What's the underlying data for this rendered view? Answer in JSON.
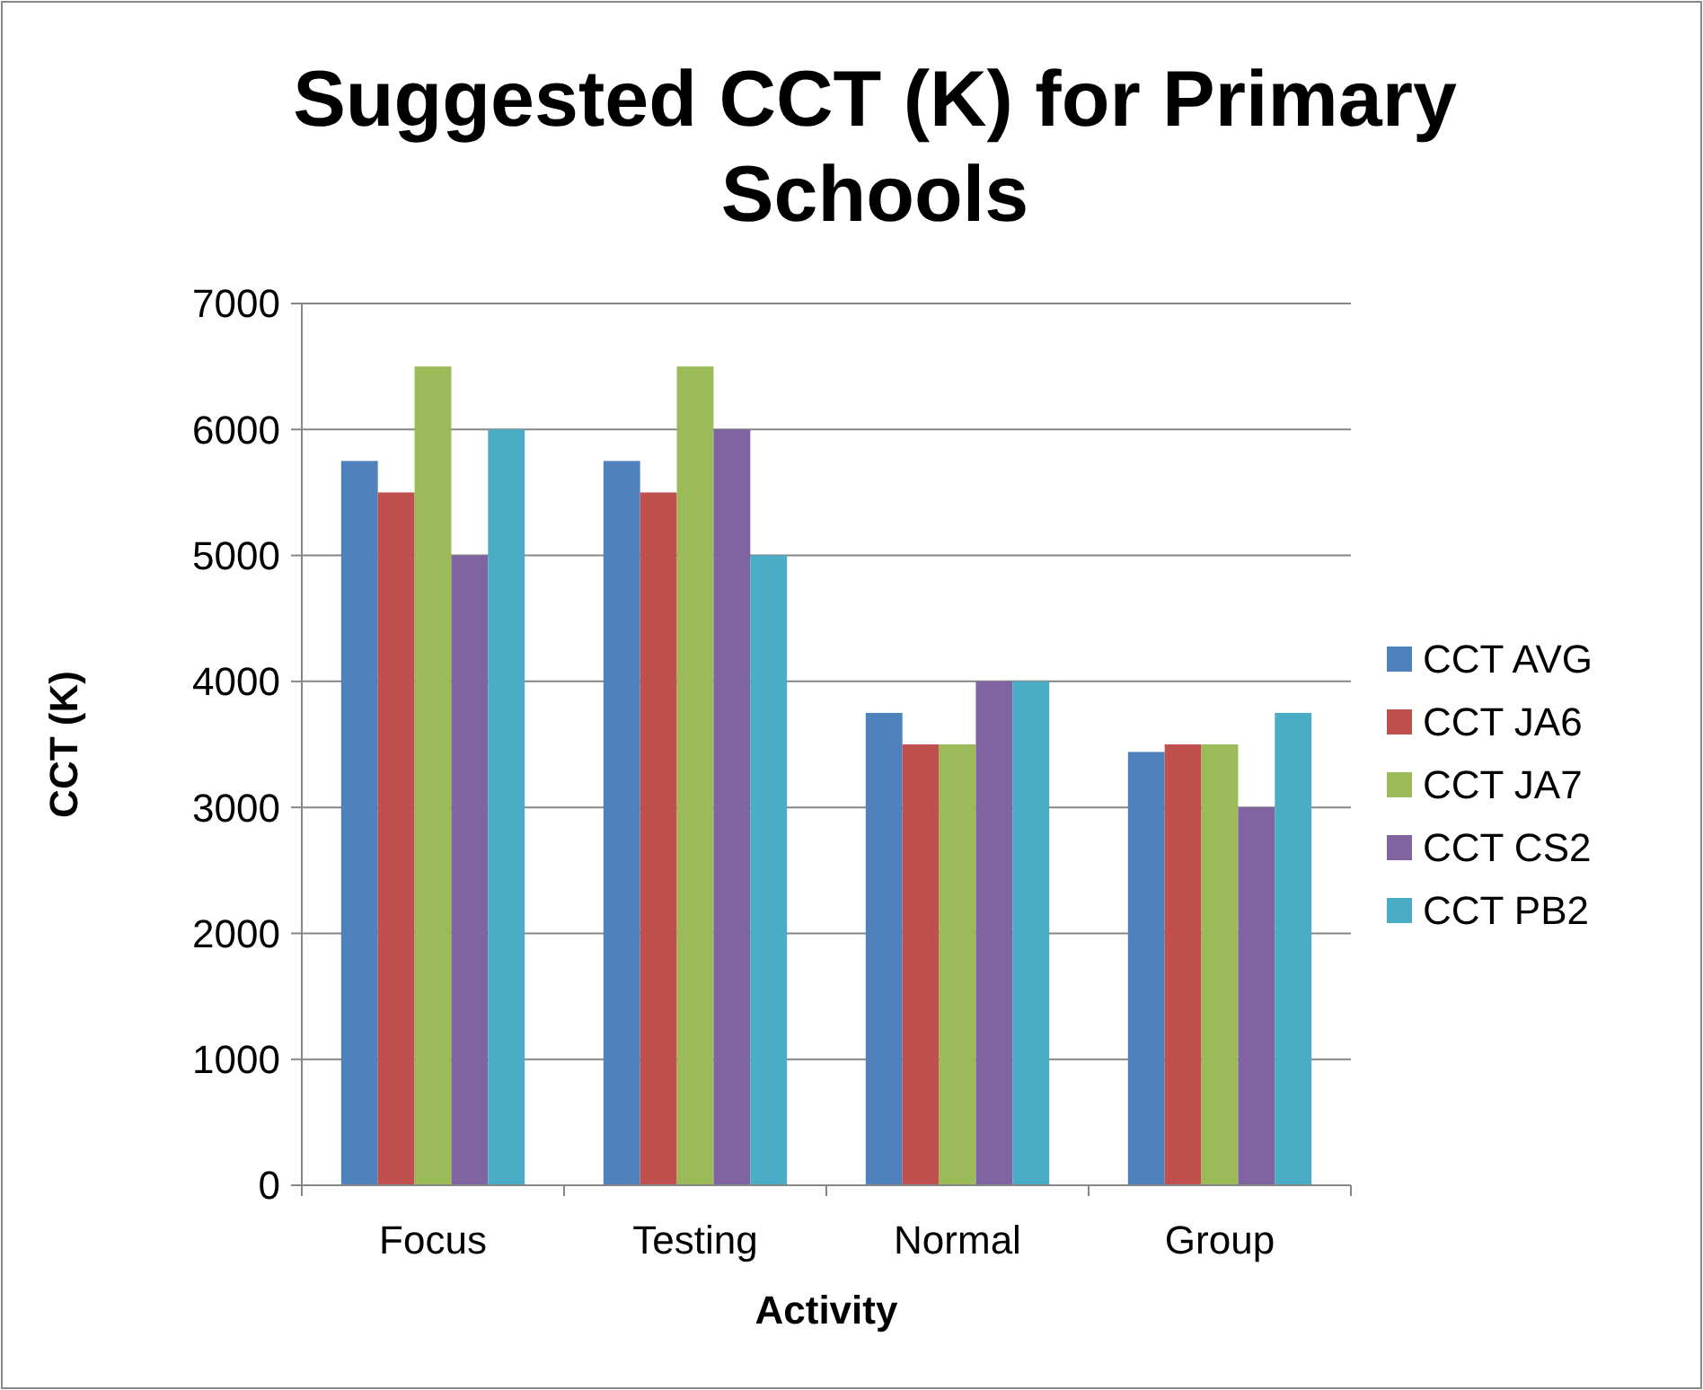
{
  "chart_data": {
    "type": "bar",
    "title": "Suggested CCT (K) for Primary Schools",
    "xlabel": "Activity",
    "ylabel": "CCT (K)",
    "categories": [
      "Focus",
      "Testing",
      "Normal",
      "Group"
    ],
    "series": [
      {
        "name": "CCT AVG",
        "color": "#4f81bd",
        "values": [
          5750,
          5750,
          3750,
          3440
        ]
      },
      {
        "name": "CCT JA6",
        "color": "#c0504d",
        "values": [
          5500,
          5500,
          3500,
          3500
        ]
      },
      {
        "name": "CCT JA7",
        "color": "#9bbb59",
        "values": [
          6500,
          6500,
          3500,
          3500
        ]
      },
      {
        "name": "CCT CS2",
        "color": "#8064a2",
        "values": [
          5000,
          6000,
          4000,
          3000
        ]
      },
      {
        "name": "CCT PB2",
        "color": "#4bacc6",
        "values": [
          6000,
          5000,
          4000,
          3750
        ]
      }
    ],
    "ylim": [
      0,
      7000
    ],
    "yticks": [
      0,
      1000,
      2000,
      3000,
      4000,
      5000,
      6000,
      7000
    ],
    "grid": "y",
    "legend": "right"
  }
}
